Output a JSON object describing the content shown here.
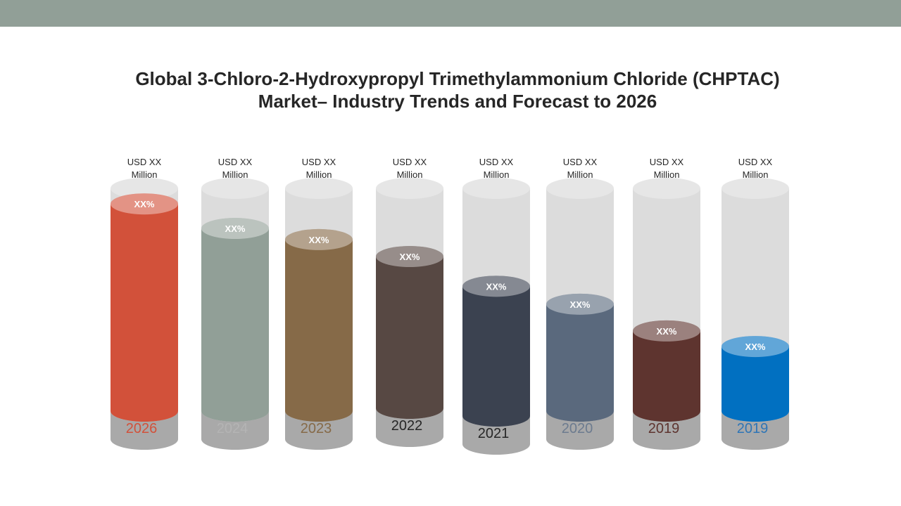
{
  "header_band_color": "#919f97",
  "title_lines": [
    "Global 3-Chloro-2-Hydroxypropyl Trimethylammonium Chloride (CHPTAC)",
    "Market– Industry Trends and Forecast to 2026"
  ],
  "chart_data": {
    "type": "bar",
    "style": "3d-cylinder",
    "categories": [
      "2026",
      "2024",
      "2023",
      "2022",
      "2021",
      "2020",
      "2019",
      "2019"
    ],
    "values": [
      0.93,
      0.82,
      0.77,
      0.69,
      0.57,
      0.48,
      0.36,
      0.29
    ],
    "bar_labels": [
      "XX%",
      "XX%",
      "XX%",
      "XX%",
      "XX%",
      "XX%",
      "XX%",
      "XX%"
    ],
    "top_labels": [
      [
        "USD  XX",
        "Million"
      ],
      [
        "USD  XX",
        "Million"
      ],
      [
        "USD  XX",
        "Million"
      ],
      [
        "USD XX",
        "Million"
      ],
      [
        "USD  XX",
        "Million"
      ],
      [
        "USD  XX",
        "Million"
      ],
      [
        "USD  XX",
        "Million"
      ],
      [
        "USD  XX",
        "Million"
      ]
    ],
    "colors": [
      "#d2513a",
      "#919f97",
      "#866a48",
      "#574843",
      "#3b4250",
      "#5a697d",
      "#5e342f",
      "#0170c1"
    ],
    "year_label_colors": [
      "#d2513a",
      "#b4b4b4",
      "#866a48",
      "#262626",
      "#262626",
      "#6c7b8f",
      "#5e342f",
      "#2e75b6"
    ],
    "ylim": [
      0,
      1
    ]
  }
}
